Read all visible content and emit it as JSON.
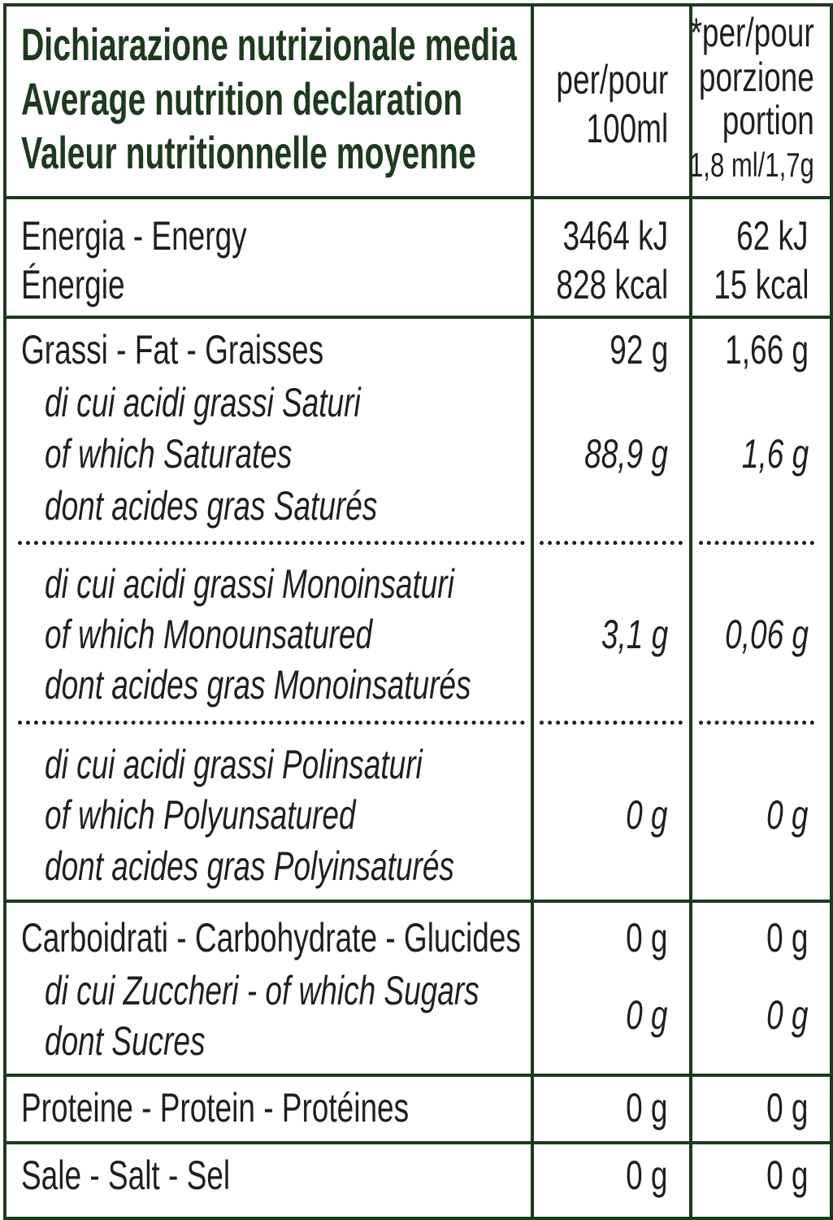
{
  "header": {
    "title": [
      "Dichiarazione nutrizionale media",
      "Average nutrition declaration",
      "Valeur nutritionnelle moyenne"
    ],
    "per_100": [
      "per/pour",
      "100ml"
    ],
    "per_portion": [
      "*per/pour",
      "porzione",
      "portion",
      "1,8 ml/1,7g"
    ]
  },
  "rows": [
    {
      "label": [
        "Energia - Energy",
        "Énergie"
      ],
      "per_100": [
        "3464 kJ",
        "828 kcal"
      ],
      "per_portion": [
        "62 kJ",
        "15 kcal"
      ]
    },
    {
      "label": [
        "Grassi - Fat - Graisses"
      ],
      "per_100": "92 g",
      "per_portion": "1,66 g"
    },
    {
      "label": [
        "di cui acidi grassi Saturi",
        "of which Saturates",
        "dont acides gras Saturés"
      ],
      "per_100": "88,9 g",
      "per_portion": "1,6 g"
    },
    {
      "label": [
        "di cui acidi grassi Monoinsaturi",
        "of which Monounsatured",
        "dont acides gras Monoinsaturés"
      ],
      "per_100": "3,1 g",
      "per_portion": "0,06 g"
    },
    {
      "label": [
        "di cui acidi grassi Polinsaturi",
        "of which Polyunsatured",
        "dont acides gras Polyinsaturés"
      ],
      "per_100": "0 g",
      "per_portion": "0 g"
    },
    {
      "label": [
        "Carboidrati - Carbohydrate - Glucides"
      ],
      "per_100": "0 g",
      "per_portion": "0 g"
    },
    {
      "label": [
        "di cui Zuccheri - of which Sugars",
        "dont Sucres"
      ],
      "per_100": "0 g",
      "per_portion": "0 g"
    },
    {
      "label": [
        "Proteine - Protein - Protéines"
      ],
      "per_100": "0 g",
      "per_portion": "0 g"
    },
    {
      "label": [
        "Sale - Salt - Sel"
      ],
      "per_100": "0 g",
      "per_portion": "0 g"
    }
  ]
}
